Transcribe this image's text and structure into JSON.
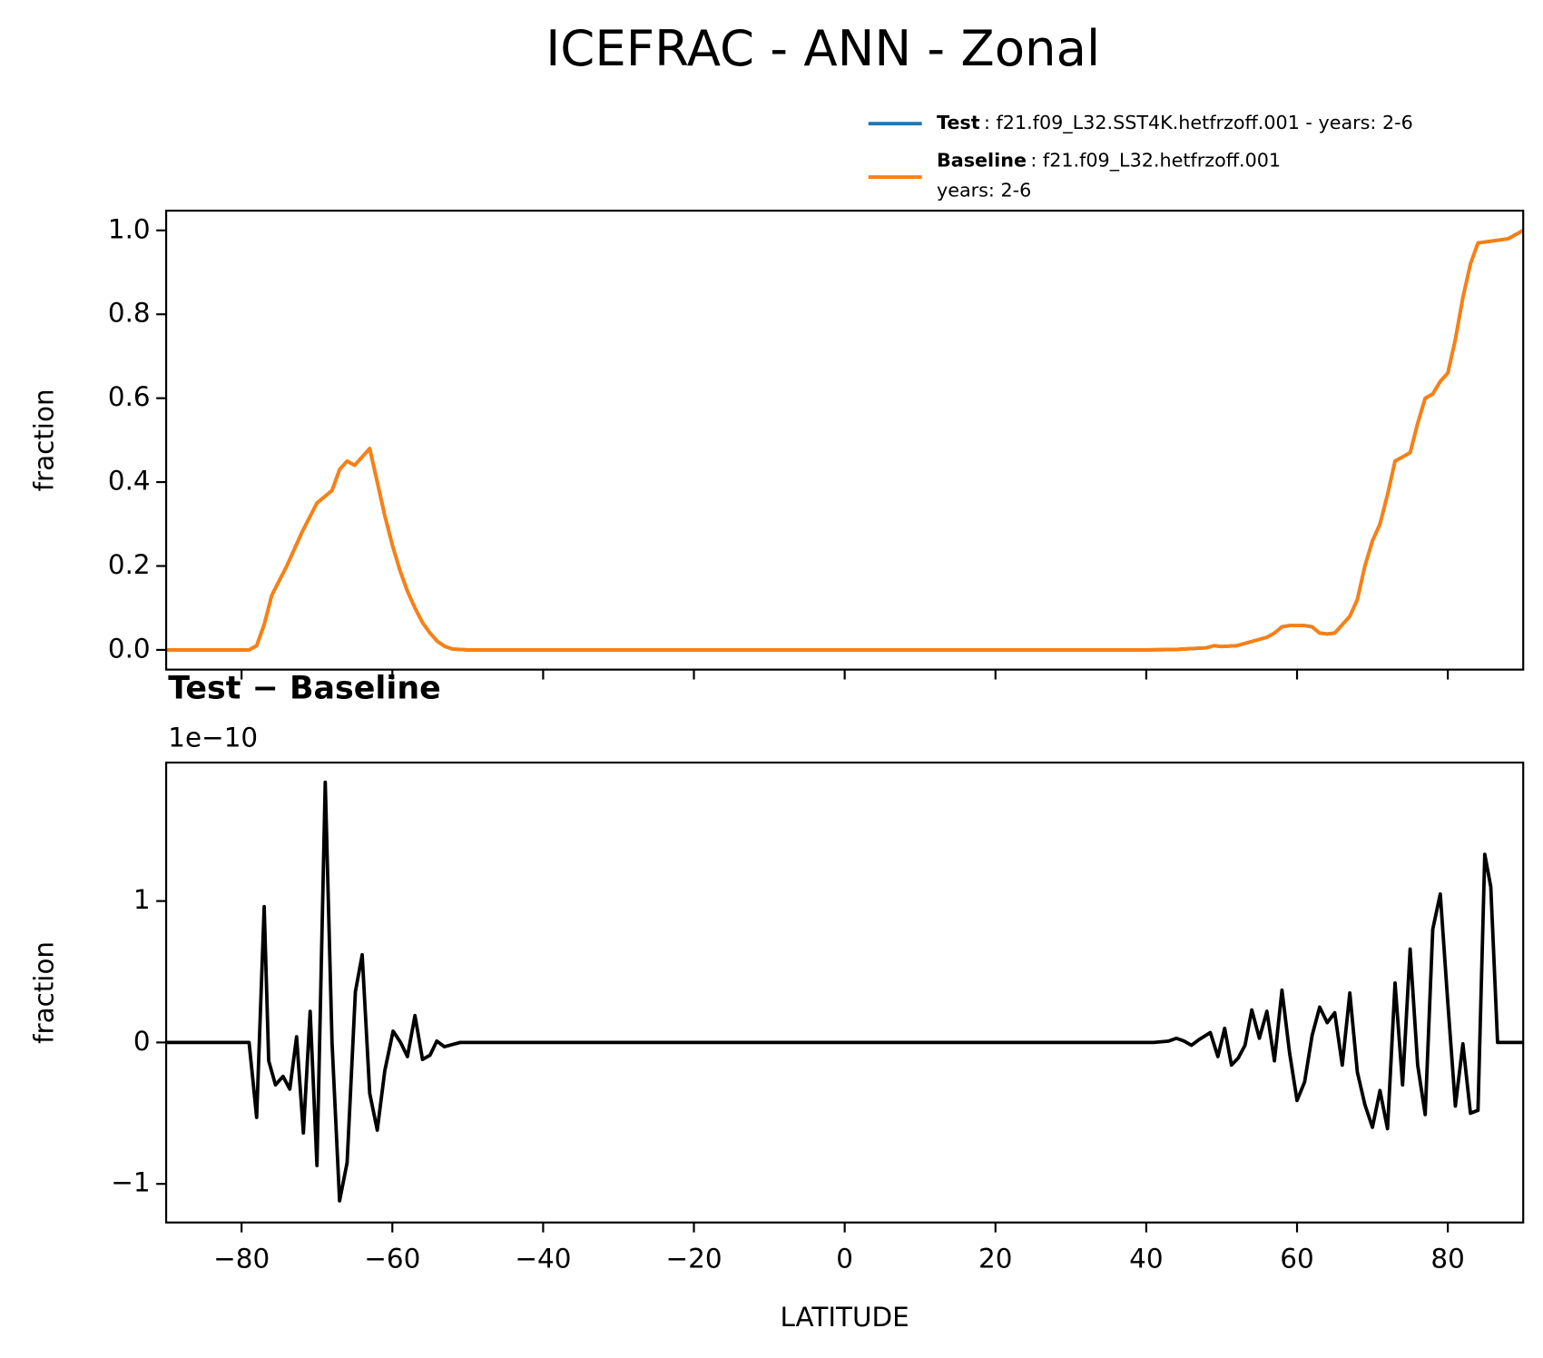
{
  "title": "ICEFRAC - ANN - Zonal",
  "chart_data": [
    {
      "type": "line",
      "ylabel": "fraction",
      "xlim": [
        -90,
        90
      ],
      "ylim": [
        -0.047,
        1.047
      ],
      "xticks": [
        -80,
        -60,
        -40,
        -20,
        0,
        20,
        40,
        60,
        80
      ],
      "yticks": [
        {
          "value": 0,
          "label": "0.0"
        },
        {
          "value": 0.2,
          "label": "0.2"
        },
        {
          "value": 0.4,
          "label": "0.4"
        },
        {
          "value": 0.6,
          "label": "0.6"
        },
        {
          "value": 0.8,
          "label": "0.8"
        },
        {
          "value": 1,
          "label": "1.0"
        }
      ],
      "x": [
        -90,
        -79,
        -78,
        -77,
        -76,
        -74,
        -72,
        -70,
        -68,
        -67,
        -66,
        -65,
        -64,
        -63,
        -62,
        -61,
        -60,
        -59,
        -58,
        -57,
        -56,
        -55,
        -54,
        -53,
        -52,
        -50,
        40,
        44,
        48,
        49,
        50,
        52,
        54,
        56,
        57,
        58,
        59,
        61,
        62,
        63,
        64,
        65,
        66,
        67,
        68,
        69,
        70,
        71,
        72,
        73,
        74,
        75,
        76,
        77,
        78,
        79,
        80,
        81,
        82,
        83,
        84,
        86,
        88,
        90
      ],
      "series": [
        {
          "name": "Test",
          "label": ": f21.f09_L32.SST4K.hetfrzoff.001 - years: 2-6",
          "color": "#1f77b4",
          "values": [
            0,
            0,
            0.01,
            0.06,
            0.13,
            0.2,
            0.28,
            0.35,
            0.38,
            0.43,
            0.45,
            0.44,
            0.46,
            0.48,
            0.4,
            0.32,
            0.25,
            0.19,
            0.14,
            0.1,
            0.065,
            0.04,
            0.02,
            0.008,
            0.002,
            0,
            0,
            0.001,
            0.005,
            0.01,
            0.008,
            0.01,
            0.02,
            0.03,
            0.04,
            0.055,
            0.058,
            0.058,
            0.055,
            0.04,
            0.038,
            0.04,
            0.06,
            0.08,
            0.12,
            0.2,
            0.26,
            0.3,
            0.37,
            0.45,
            0.46,
            0.47,
            0.54,
            0.6,
            0.61,
            0.64,
            0.66,
            0.74,
            0.84,
            0.92,
            0.97,
            0.975,
            0.98,
            1.0
          ]
        },
        {
          "name": "Baseline",
          "label": [
            ": f21.f09_L32.hetfrzoff.001",
            "years: 2-6"
          ],
          "color": "#ff7f0e",
          "values": [
            0,
            0,
            0.01,
            0.06,
            0.13,
            0.2,
            0.28,
            0.35,
            0.38,
            0.43,
            0.45,
            0.44,
            0.46,
            0.48,
            0.4,
            0.32,
            0.25,
            0.19,
            0.14,
            0.1,
            0.065,
            0.04,
            0.02,
            0.008,
            0.002,
            0,
            0,
            0.001,
            0.005,
            0.01,
            0.008,
            0.01,
            0.02,
            0.03,
            0.04,
            0.055,
            0.058,
            0.058,
            0.055,
            0.04,
            0.038,
            0.04,
            0.06,
            0.08,
            0.12,
            0.2,
            0.26,
            0.3,
            0.37,
            0.45,
            0.46,
            0.47,
            0.54,
            0.6,
            0.61,
            0.64,
            0.66,
            0.74,
            0.84,
            0.92,
            0.97,
            0.975,
            0.98,
            1.0
          ]
        }
      ]
    },
    {
      "type": "line",
      "title": "Test − Baseline",
      "offset_label": "1e−10",
      "xlabel": "LATITUDE",
      "ylabel": "fraction",
      "xlim": [
        -90,
        90
      ],
      "ylim": [
        -1.273,
        1.979
      ],
      "xticks": [
        {
          "value": -80,
          "label": "−80"
        },
        {
          "value": -60,
          "label": "−60"
        },
        {
          "value": -40,
          "label": "−40"
        },
        {
          "value": -20,
          "label": "−20"
        },
        0,
        20,
        40,
        60,
        80
      ],
      "yticks": [
        {
          "value": -1,
          "label": "−1"
        },
        0,
        1
      ],
      "x": [
        -90,
        -79,
        -78,
        -77,
        -76.4,
        -75.5,
        -74.5,
        -73.6,
        -72.7,
        -71.8,
        -70.9,
        -70,
        -68.9,
        -68,
        -67,
        -66,
        -64.9,
        -64,
        -63,
        -62,
        -61,
        -59.9,
        -58.9,
        -58,
        -57,
        -56,
        -55,
        -54.1,
        -53.1,
        -51,
        41,
        43,
        44,
        45,
        46,
        47,
        48.5,
        49.5,
        50.4,
        51.3,
        52.2,
        53.1,
        54,
        55,
        56,
        57,
        58,
        59,
        60,
        61,
        62,
        63,
        64,
        65,
        66,
        67,
        68,
        69,
        70,
        71,
        72,
        73,
        74,
        75,
        76,
        77,
        78,
        79,
        80,
        81,
        82,
        83,
        84,
        84.9,
        85.7,
        86.6,
        90
      ],
      "series": [
        {
          "name": "Test − Baseline",
          "color": "#000000",
          "values": [
            0,
            0,
            -0.53,
            0.96,
            -0.13,
            -0.3,
            -0.24,
            -0.33,
            0.04,
            -0.64,
            0.22,
            -0.87,
            1.84,
            0,
            -1.12,
            -0.85,
            0.36,
            0.62,
            -0.36,
            -0.62,
            -0.2,
            0.08,
            0.0,
            -0.1,
            0.19,
            -0.12,
            -0.09,
            0.01,
            -0.03,
            0,
            0,
            0.01,
            0.03,
            0.01,
            -0.02,
            0.02,
            0.07,
            -0.1,
            0.1,
            -0.16,
            -0.11,
            -0.02,
            0.23,
            0.03,
            0.22,
            -0.13,
            0.37,
            -0.07,
            -0.41,
            -0.28,
            0.05,
            0.25,
            0.14,
            0.21,
            -0.16,
            0.35,
            -0.21,
            -0.44,
            -0.6,
            -0.34,
            -0.61,
            0.42,
            -0.3,
            0.66,
            -0.16,
            -0.51,
            0.8,
            1.05,
            0.28,
            -0.45,
            -0.01,
            -0.5,
            -0.48,
            1.33,
            1.1,
            0,
            0
          ]
        }
      ]
    }
  ]
}
